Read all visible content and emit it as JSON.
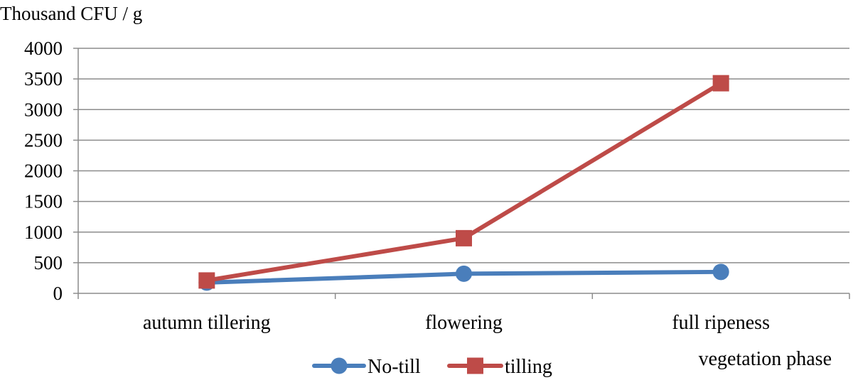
{
  "chart_data": {
    "type": "line",
    "ylabel": "Thousand CFU / g",
    "xlabel": "vegetation phase",
    "categories": [
      "autumn tillering",
      "flowering",
      "full ripeness"
    ],
    "ylim": [
      0,
      4000
    ],
    "yticks": [
      0,
      500,
      1000,
      1500,
      2000,
      2500,
      3000,
      3500,
      4000
    ],
    "grid": true,
    "legend_position": "bottom",
    "series": [
      {
        "name": "No-till",
        "values": [
          175,
          320,
          350
        ],
        "color": "#4A7EBB",
        "marker": "circle"
      },
      {
        "name": "tilling",
        "values": [
          210,
          900,
          3430
        ],
        "color": "#BE4B48",
        "marker": "square"
      }
    ]
  }
}
